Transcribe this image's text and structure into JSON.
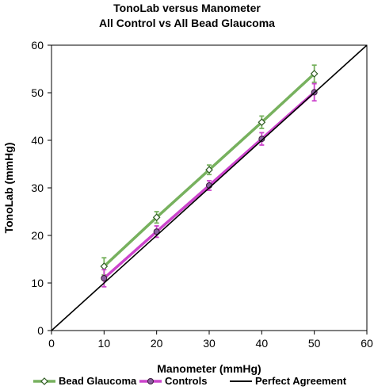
{
  "chart_data": {
    "type": "line",
    "title": "TonoLab versus Manometer",
    "subtitle": "All Control vs All Bead Glaucoma",
    "xlabel": "Manometer (mmHg)",
    "ylabel": "TonoLab (mmHg)",
    "xlim": [
      0,
      60
    ],
    "ylim": [
      0,
      60
    ],
    "xticks": [
      0,
      10,
      20,
      30,
      40,
      50,
      60
    ],
    "yticks": [
      0,
      10,
      20,
      30,
      40,
      50,
      60
    ],
    "grid": false,
    "legend_position": "bottom",
    "x": [
      10,
      20,
      30,
      40,
      50
    ],
    "series": [
      {
        "name": "Bead Glaucoma",
        "color": "#77b15e",
        "marker": "diamond",
        "values": [
          13.5,
          23.8,
          33.8,
          43.8,
          54.0
        ],
        "error": [
          1.8,
          1.2,
          1.0,
          1.3,
          1.8
        ]
      },
      {
        "name": "Controls",
        "color": "#cc44cc",
        "marker": "circle",
        "values": [
          11.0,
          20.8,
          30.5,
          40.3,
          50.1
        ],
        "error": [
          1.8,
          1.2,
          1.0,
          1.3,
          1.8
        ]
      },
      {
        "name": "Perfect Agreement",
        "color": "#000000",
        "marker": "none",
        "line": [
          [
            0,
            0
          ],
          [
            60,
            60
          ]
        ]
      }
    ]
  }
}
